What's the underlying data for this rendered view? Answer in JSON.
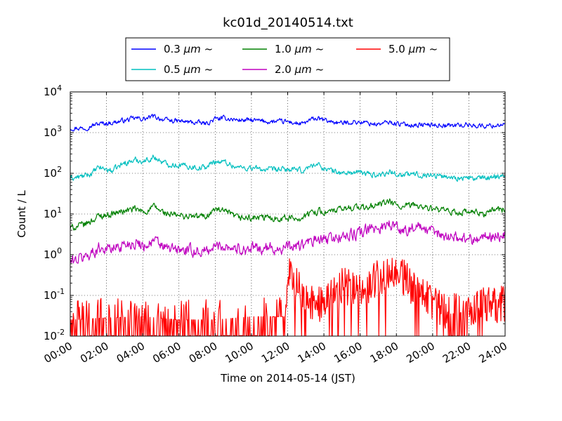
{
  "chart_data": {
    "type": "line",
    "title": "kc01d_20140514.txt",
    "xlabel": "Time on 2014-05-14 (JST)",
    "ylabel": "Count / L",
    "xlim": [
      0,
      24
    ],
    "ylim": [
      0.01,
      10000
    ],
    "yscale": "log",
    "grid": true,
    "legend_position": "top-center",
    "x_ticks": [
      {
        "value": 0,
        "label": "00:00"
      },
      {
        "value": 2,
        "label": "02:00"
      },
      {
        "value": 4,
        "label": "04:00"
      },
      {
        "value": 6,
        "label": "06:00"
      },
      {
        "value": 8,
        "label": "08:00"
      },
      {
        "value": 10,
        "label": "10:00"
      },
      {
        "value": 12,
        "label": "12:00"
      },
      {
        "value": 14,
        "label": "14:00"
      },
      {
        "value": 16,
        "label": "16:00"
      },
      {
        "value": 18,
        "label": "18:00"
      },
      {
        "value": 20,
        "label": "20:00"
      },
      {
        "value": 22,
        "label": "22:00"
      },
      {
        "value": 24,
        "label": "24:00"
      }
    ],
    "y_ticks": [
      {
        "value": 0.01,
        "base": "10",
        "exp": "-2"
      },
      {
        "value": 0.1,
        "base": "10",
        "exp": "-1"
      },
      {
        "value": 1,
        "base": "10",
        "exp": "0"
      },
      {
        "value": 10,
        "base": "10",
        "exp": "1"
      },
      {
        "value": 100,
        "base": "10",
        "exp": "2"
      },
      {
        "value": 1000,
        "base": "10",
        "exp": "3"
      },
      {
        "value": 10000,
        "base": "10",
        "exp": "4"
      }
    ],
    "series": [
      {
        "name": "0.3 μm ~",
        "color": "#0000ff",
        "noise": 0.05,
        "x": [
          0,
          0.8,
          1.2,
          1.6,
          2.3,
          3.0,
          3.6,
          4.1,
          4.6,
          5.3,
          6.0,
          7.0,
          7.5,
          8.0,
          8.6,
          9.2,
          10.0,
          11.0,
          12.0,
          12.8,
          13.5,
          14.3,
          15.0,
          15.6,
          16.3,
          17.0,
          17.6,
          18.3,
          19.0,
          20.0,
          21.0,
          22.0,
          22.8,
          23.4,
          24.0
        ],
        "y": [
          1300,
          1300,
          1500,
          1650,
          1750,
          2000,
          2250,
          2150,
          2500,
          2000,
          1900,
          1750,
          1650,
          2150,
          2250,
          2050,
          2000,
          1850,
          1850,
          1600,
          2250,
          1900,
          1700,
          1850,
          1750,
          1600,
          1800,
          1600,
          1550,
          1550,
          1500,
          1550,
          1450,
          1500,
          1650
        ]
      },
      {
        "name": "0.5 μm ~",
        "color": "#00bfbf",
        "noise": 0.06,
        "x": [
          0,
          0.8,
          1.2,
          1.6,
          2.3,
          3.0,
          3.6,
          4.1,
          4.6,
          5.3,
          6.0,
          7.0,
          7.5,
          8.0,
          8.6,
          9.2,
          10.0,
          11.0,
          12.0,
          12.8,
          13.5,
          14.3,
          15.0,
          15.6,
          16.3,
          17.0,
          17.6,
          18.3,
          19.0,
          20.0,
          21.0,
          22.0,
          22.8,
          23.4,
          24.0
        ],
        "y": [
          75,
          85,
          100,
          140,
          115,
          180,
          210,
          200,
          250,
          170,
          160,
          140,
          140,
          200,
          185,
          140,
          135,
          120,
          125,
          115,
          170,
          120,
          100,
          105,
          100,
          90,
          110,
          90,
          95,
          90,
          80,
          75,
          75,
          85,
          90
        ]
      },
      {
        "name": "1.0 μm ~",
        "color": "#008000",
        "noise": 0.07,
        "x": [
          0,
          0.8,
          1.2,
          1.6,
          2.3,
          3.0,
          3.6,
          4.1,
          4.6,
          5.3,
          6.0,
          7.0,
          7.5,
          8.0,
          8.6,
          9.2,
          10.0,
          11.0,
          12.0,
          12.8,
          13.5,
          14.3,
          15.0,
          15.6,
          16.3,
          17.0,
          17.6,
          18.3,
          19.0,
          20.0,
          21.0,
          22.0,
          22.8,
          23.4,
          24.0
        ],
        "y": [
          4.5,
          5.5,
          7,
          9,
          10,
          12,
          13,
          11,
          15,
          10,
          9,
          8.5,
          9,
          13,
          11,
          8,
          8,
          8,
          8,
          8,
          12,
          11,
          13,
          15,
          14,
          17,
          20,
          14,
          17,
          13,
          11,
          11,
          10,
          13,
          13
        ]
      },
      {
        "name": "2.0 μm ~",
        "color": "#bf00bf",
        "noise": 0.12,
        "x": [
          0,
          0.8,
          1.2,
          1.6,
          2.3,
          3.0,
          3.6,
          4.1,
          4.6,
          5.3,
          6.0,
          7.0,
          7.5,
          8.0,
          8.6,
          9.2,
          10.0,
          11.0,
          12.0,
          12.8,
          13.5,
          14.3,
          15.0,
          15.6,
          16.3,
          17.0,
          17.6,
          18.3,
          19.0,
          20.0,
          21.0,
          22.0,
          22.8,
          23.4,
          24.0
        ],
        "y": [
          0.65,
          0.9,
          1.1,
          1.5,
          1.4,
          1.8,
          2.0,
          1.7,
          2.2,
          1.4,
          1.3,
          1.2,
          1.2,
          1.6,
          1.7,
          1.4,
          1.4,
          1.4,
          1.5,
          1.7,
          2.2,
          2.4,
          2.8,
          3.0,
          3.8,
          4.5,
          6.0,
          3.8,
          5.0,
          3.5,
          2.8,
          2.5,
          2.6,
          2.9,
          3.0
        ]
      },
      {
        "name": "5.0 μm ~",
        "color": "#ff0000",
        "noise": 0,
        "x": [
          0,
          2,
          4,
          6,
          8,
          10,
          11.9,
          12.1,
          13,
          14,
          15,
          16,
          17,
          17.6,
          18,
          18.6,
          19,
          20,
          21,
          22,
          23,
          24
        ],
        "y": [
          0.025,
          0.028,
          0.03,
          0.025,
          0.025,
          0.03,
          0.03,
          0.3,
          0.08,
          0.06,
          0.18,
          0.12,
          0.28,
          0.35,
          0.35,
          0.25,
          0.12,
          0.07,
          0.035,
          0.04,
          0.06,
          0.06
        ]
      }
    ]
  },
  "legend": {
    "items": [
      {
        "size": "0.3",
        "unit": "μm",
        "suffix": "~",
        "color": "#0000ff"
      },
      {
        "size": "0.5",
        "unit": "μm",
        "suffix": "~",
        "color": "#00bfbf"
      },
      {
        "size": "1.0",
        "unit": "μm",
        "suffix": "~",
        "color": "#008000"
      },
      {
        "size": "2.0",
        "unit": "μm",
        "suffix": "~",
        "color": "#bf00bf"
      },
      {
        "size": "5.0",
        "unit": "μm",
        "suffix": "~",
        "color": "#ff0000"
      }
    ]
  }
}
